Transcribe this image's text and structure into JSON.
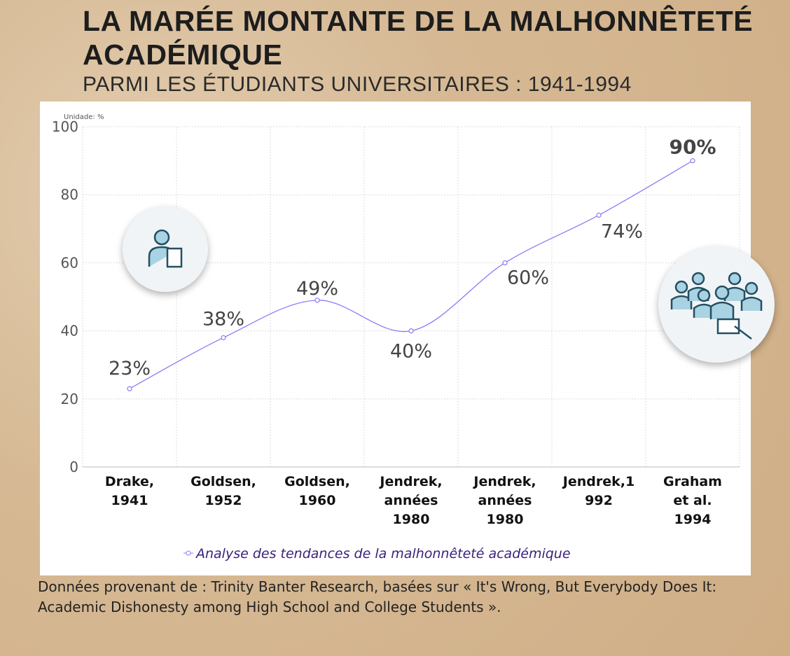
{
  "header": {
    "title": "LA MARÉE MONTANTE DE LA MALHONNÊTETÉ ACADÉMIQUE",
    "subtitle": "PARMI LES ÉTUDIANTS UNIVERSITAIRES : 1941-1994"
  },
  "source": "Données provenant de : Trinity Banter Research, basées sur « It's Wrong, But Everybody Does It: Academic Dishonesty among High School and College Students ».",
  "icons": [
    "teacher-icon",
    "students-group-icon"
  ],
  "chart_data": {
    "type": "line",
    "unit_label": "Unidade: %",
    "categories": [
      "Drake, 1941",
      "Goldsen, 1952",
      "Goldsen, 1960",
      "Jendrek, années 1980",
      "Jendrek, années 1980",
      "Jendrek,1 992",
      "Graham et al. 1994"
    ],
    "category_lines": [
      [
        "Drake,",
        "1941"
      ],
      [
        "Goldsen,",
        "1952"
      ],
      [
        "Goldsen,",
        "1960"
      ],
      [
        "Jendrek,",
        "années",
        "1980"
      ],
      [
        "Jendrek,",
        "années",
        "1980"
      ],
      [
        "Jendrek,1",
        "992"
      ],
      [
        "Graham",
        "et al.",
        "1994"
      ]
    ],
    "series": [
      {
        "name": "Analyse des tendances de la malhonnêteté académique",
        "values": [
          23,
          38,
          49,
          40,
          60,
          74,
          90
        ],
        "labels": [
          "23%",
          "38%",
          "49%",
          "40%",
          "60%",
          "74%",
          "90%"
        ],
        "color": "#8b7cf6"
      }
    ],
    "ylim": [
      0,
      100
    ],
    "yticks": [
      0,
      20,
      40,
      60,
      80,
      100
    ],
    "grid": true,
    "legend": "bottom"
  }
}
